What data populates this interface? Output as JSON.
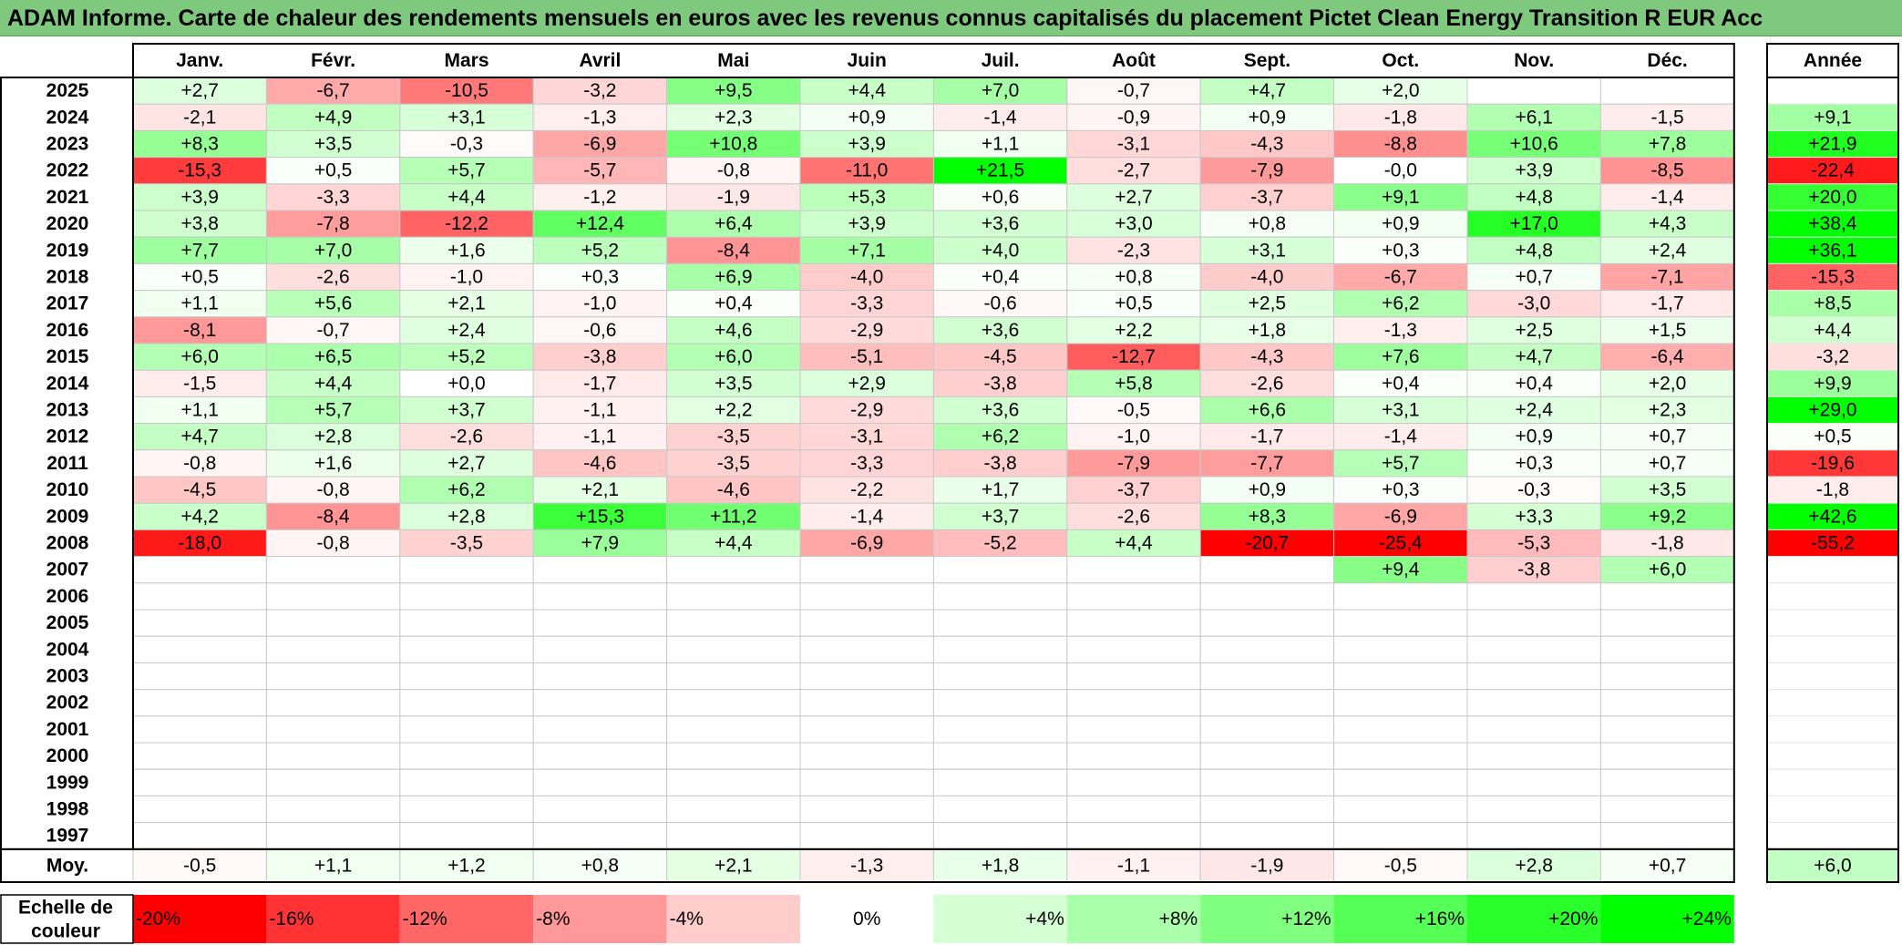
{
  "title": "ADAM Informe. Carte de chaleur des rendements mensuels en euros avec les revenus connus capitalisés du placement Pictet Clean Energy Transition R EUR Acc",
  "chart_data": {
    "type": "heatmap",
    "months": [
      "Janv.",
      "Févr.",
      "Mars",
      "Avril",
      "Mai",
      "Juin",
      "Juil.",
      "Août",
      "Sept.",
      "Oct.",
      "Nov.",
      "Déc."
    ],
    "year_header": "Année",
    "average_label": "Moy.",
    "scale_label": "Echelle de couleur",
    "rows": [
      {
        "year": "2025",
        "values": [
          "+2,7",
          "-6,7",
          "-10,5",
          "-3,2",
          "+9,5",
          "+4,4",
          "+7,0",
          "-0,7",
          "+4,7",
          "+2,0",
          "",
          ""
        ],
        "annual": ""
      },
      {
        "year": "2024",
        "values": [
          "-2,1",
          "+4,9",
          "+3,1",
          "-1,3",
          "+2,3",
          "+0,9",
          "-1,4",
          "-0,9",
          "+0,9",
          "-1,8",
          "+6,1",
          "-1,5"
        ],
        "annual": "+9,1"
      },
      {
        "year": "2023",
        "values": [
          "+8,3",
          "+3,5",
          "-0,3",
          "-6,9",
          "+10,8",
          "+3,9",
          "+1,1",
          "-3,1",
          "-4,3",
          "-8,8",
          "+10,6",
          "+7,8"
        ],
        "annual": "+21,9"
      },
      {
        "year": "2022",
        "values": [
          "-15,3",
          "+0,5",
          "+5,7",
          "-5,7",
          "-0,8",
          "-11,0",
          "+21,5",
          "-2,7",
          "-7,9",
          "-0,0",
          "+3,9",
          "-8,5"
        ],
        "annual": "-22,4"
      },
      {
        "year": "2021",
        "values": [
          "+3,9",
          "-3,3",
          "+4,4",
          "-1,2",
          "-1,9",
          "+5,3",
          "+0,6",
          "+2,7",
          "-3,7",
          "+9,1",
          "+4,8",
          "-1,4"
        ],
        "annual": "+20,0"
      },
      {
        "year": "2020",
        "values": [
          "+3,8",
          "-7,8",
          "-12,2",
          "+12,4",
          "+6,4",
          "+3,9",
          "+3,6",
          "+3,0",
          "+0,8",
          "+0,9",
          "+17,0",
          "+4,3"
        ],
        "annual": "+38,4"
      },
      {
        "year": "2019",
        "values": [
          "+7,7",
          "+7,0",
          "+1,6",
          "+5,2",
          "-8,4",
          "+7,1",
          "+4,0",
          "-2,3",
          "+3,1",
          "+0,3",
          "+4,8",
          "+2,4"
        ],
        "annual": "+36,1"
      },
      {
        "year": "2018",
        "values": [
          "+0,5",
          "-2,6",
          "-1,0",
          "+0,3",
          "+6,9",
          "-4,0",
          "+0,4",
          "+0,8",
          "-4,0",
          "-6,7",
          "+0,7",
          "-7,1"
        ],
        "annual": "-15,3"
      },
      {
        "year": "2017",
        "values": [
          "+1,1",
          "+5,6",
          "+2,1",
          "-1,0",
          "+0,4",
          "-3,3",
          "-0,6",
          "+0,5",
          "+2,5",
          "+6,2",
          "-3,0",
          "-1,7"
        ],
        "annual": "+8,5"
      },
      {
        "year": "2016",
        "values": [
          "-8,1",
          "-0,7",
          "+2,4",
          "-0,6",
          "+4,6",
          "-2,9",
          "+3,6",
          "+2,2",
          "+1,8",
          "-1,3",
          "+2,5",
          "+1,5"
        ],
        "annual": "+4,4"
      },
      {
        "year": "2015",
        "values": [
          "+6,0",
          "+6,5",
          "+5,2",
          "-3,8",
          "+6,0",
          "-5,1",
          "-4,5",
          "-12,7",
          "-4,3",
          "+7,6",
          "+4,7",
          "-6,4"
        ],
        "annual": "-3,2"
      },
      {
        "year": "2014",
        "values": [
          "-1,5",
          "+4,4",
          "+0,0",
          "-1,7",
          "+3,5",
          "+2,9",
          "-3,8",
          "+5,8",
          "-2,6",
          "+0,4",
          "+0,4",
          "+2,0"
        ],
        "annual": "+9,9"
      },
      {
        "year": "2013",
        "values": [
          "+1,1",
          "+5,7",
          "+3,7",
          "-1,1",
          "+2,2",
          "-2,9",
          "+3,6",
          "-0,5",
          "+6,6",
          "+3,1",
          "+2,4",
          "+2,3"
        ],
        "annual": "+29,0"
      },
      {
        "year": "2012",
        "values": [
          "+4,7",
          "+2,8",
          "-2,6",
          "-1,1",
          "-3,5",
          "-3,1",
          "+6,2",
          "-1,0",
          "-1,7",
          "-1,4",
          "+0,9",
          "+0,7"
        ],
        "annual": "+0,5"
      },
      {
        "year": "2011",
        "values": [
          "-0,8",
          "+1,6",
          "+2,7",
          "-4,6",
          "-3,5",
          "-3,3",
          "-3,8",
          "-7,9",
          "-7,7",
          "+5,7",
          "+0,3",
          "+0,7"
        ],
        "annual": "-19,6"
      },
      {
        "year": "2010",
        "values": [
          "-4,5",
          "-0,8",
          "+6,2",
          "+2,1",
          "-4,6",
          "-2,2",
          "+1,7",
          "-3,7",
          "+0,9",
          "+0,3",
          "-0,3",
          "+3,5"
        ],
        "annual": "-1,8"
      },
      {
        "year": "2009",
        "values": [
          "+4,2",
          "-8,4",
          "+2,8",
          "+15,3",
          "+11,2",
          "-1,4",
          "+3,7",
          "-2,6",
          "+8,3",
          "-6,9",
          "+3,3",
          "+9,2"
        ],
        "annual": "+42,6"
      },
      {
        "year": "2008",
        "values": [
          "-18,0",
          "-0,8",
          "-3,5",
          "+7,9",
          "+4,4",
          "-6,9",
          "-5,2",
          "+4,4",
          "-20,7",
          "-25,4",
          "-5,3",
          "-1,8"
        ],
        "annual": "-55,2"
      },
      {
        "year": "2007",
        "values": [
          "",
          "",
          "",
          "",
          "",
          "",
          "",
          "",
          "",
          "+9,4",
          "-3,8",
          "+6,0"
        ],
        "annual": ""
      },
      {
        "year": "2006",
        "values": [
          "",
          "",
          "",
          "",
          "",
          "",
          "",
          "",
          "",
          "",
          "",
          ""
        ],
        "annual": ""
      },
      {
        "year": "2005",
        "values": [
          "",
          "",
          "",
          "",
          "",
          "",
          "",
          "",
          "",
          "",
          "",
          ""
        ],
        "annual": ""
      },
      {
        "year": "2004",
        "values": [
          "",
          "",
          "",
          "",
          "",
          "",
          "",
          "",
          "",
          "",
          "",
          ""
        ],
        "annual": ""
      },
      {
        "year": "2003",
        "values": [
          "",
          "",
          "",
          "",
          "",
          "",
          "",
          "",
          "",
          "",
          "",
          ""
        ],
        "annual": ""
      },
      {
        "year": "2002",
        "values": [
          "",
          "",
          "",
          "",
          "",
          "",
          "",
          "",
          "",
          "",
          "",
          ""
        ],
        "annual": ""
      },
      {
        "year": "2001",
        "values": [
          "",
          "",
          "",
          "",
          "",
          "",
          "",
          "",
          "",
          "",
          "",
          ""
        ],
        "annual": ""
      },
      {
        "year": "2000",
        "values": [
          "",
          "",
          "",
          "",
          "",
          "",
          "",
          "",
          "",
          "",
          "",
          ""
        ],
        "annual": ""
      },
      {
        "year": "1999",
        "values": [
          "",
          "",
          "",
          "",
          "",
          "",
          "",
          "",
          "",
          "",
          "",
          ""
        ],
        "annual": ""
      },
      {
        "year": "1998",
        "values": [
          "",
          "",
          "",
          "",
          "",
          "",
          "",
          "",
          "",
          "",
          "",
          ""
        ],
        "annual": ""
      },
      {
        "year": "1997",
        "values": [
          "",
          "",
          "",
          "",
          "",
          "",
          "",
          "",
          "",
          "",
          "",
          ""
        ],
        "annual": ""
      }
    ],
    "averages": [
      "-0,5",
      "+1,1",
      "+1,2",
      "+0,8",
      "+2,1",
      "-1,3",
      "+1,8",
      "-1,1",
      "-1,9",
      "-0,5",
      "+2,8",
      "+0,7"
    ],
    "average_annual": "+6,0",
    "scale": [
      {
        "label": "-20%",
        "value": -20,
        "color": "#ff0000"
      },
      {
        "label": "-16%",
        "value": -16,
        "color": "#ff3333"
      },
      {
        "label": "-12%",
        "value": -12,
        "color": "#ff6666"
      },
      {
        "label": "-8%",
        "value": -8,
        "color": "#ff9999"
      },
      {
        "label": "-4%",
        "value": -4,
        "color": "#ffcccc"
      },
      {
        "label": "0%",
        "value": 0,
        "color": "#ffffff"
      },
      {
        "label": "+4%",
        "value": 4,
        "color": "#d5ffd5"
      },
      {
        "label": "+8%",
        "value": 8,
        "color": "#aaffaa"
      },
      {
        "label": "+12%",
        "value": 12,
        "color": "#80ff80"
      },
      {
        "label": "+16%",
        "value": 16,
        "color": "#55ff55"
      },
      {
        "label": "+20%",
        "value": 20,
        "color": "#2bff2b"
      },
      {
        "label": "+24%",
        "value": 24,
        "color": "#00ff00"
      }
    ],
    "colors": {
      "negative_max": "#ff0000",
      "positive_max": "#00ff00",
      "neutral": "#ffffff",
      "title_background": "#7fc97f"
    }
  }
}
